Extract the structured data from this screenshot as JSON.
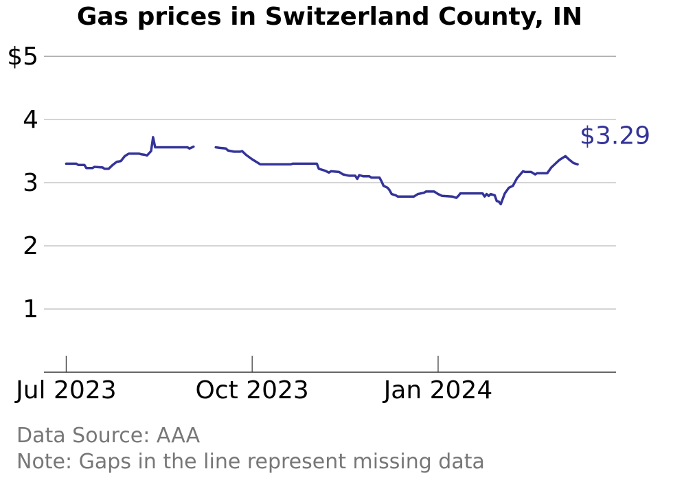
{
  "chart_data": {
    "type": "line",
    "title": "Gas prices in Switzerland County, IN",
    "xlabel": "",
    "ylabel": "",
    "ylim": [
      0,
      5
    ],
    "yticks": [
      {
        "value": 1,
        "label": "1"
      },
      {
        "value": 2,
        "label": "2"
      },
      {
        "value": 3,
        "label": "3"
      },
      {
        "value": 4,
        "label": "4"
      },
      {
        "value": 5,
        "label": "$5"
      }
    ],
    "xlim": [
      "2023-06-20",
      "2024-03-29"
    ],
    "xticks": [
      {
        "value": "2023-07-01",
        "label": "Jul 2023"
      },
      {
        "value": "2023-10-01",
        "label": "Oct 2023"
      },
      {
        "value": "2024-01-01",
        "label": "Jan 2024"
      }
    ],
    "grid": true,
    "line_color": "#333399",
    "last_value_label": "$3.29",
    "series": [
      {
        "segments": [
          [
            [
              "2023-07-01",
              3.3
            ],
            [
              "2023-07-06",
              3.3
            ],
            [
              "2023-07-07",
              3.28
            ],
            [
              "2023-07-10",
              3.28
            ],
            [
              "2023-07-11",
              3.23
            ],
            [
              "2023-07-14",
              3.23
            ],
            [
              "2023-07-15",
              3.25
            ],
            [
              "2023-07-19",
              3.24
            ],
            [
              "2023-07-20",
              3.22
            ],
            [
              "2023-07-22",
              3.22
            ],
            [
              "2023-07-24",
              3.28
            ],
            [
              "2023-07-26",
              3.33
            ],
            [
              "2023-07-28",
              3.34
            ],
            [
              "2023-07-30",
              3.42
            ],
            [
              "2023-08-01",
              3.46
            ],
            [
              "2023-08-06",
              3.46
            ],
            [
              "2023-08-07",
              3.45
            ],
            [
              "2023-08-09",
              3.44
            ],
            [
              "2023-08-10",
              3.43
            ],
            [
              "2023-08-12",
              3.5
            ],
            [
              "2023-08-13",
              3.72
            ],
            [
              "2023-08-14",
              3.56
            ],
            [
              "2023-08-30",
              3.56
            ],
            [
              "2023-08-31",
              3.54
            ],
            [
              "2023-09-02",
              3.57
            ]
          ],
          [
            [
              "2023-09-13",
              3.56
            ],
            [
              "2023-09-15",
              3.55
            ],
            [
              "2023-09-18",
              3.54
            ],
            [
              "2023-09-19",
              3.51
            ],
            [
              "2023-09-22",
              3.49
            ],
            [
              "2023-09-25",
              3.49
            ],
            [
              "2023-09-26",
              3.5
            ],
            [
              "2023-09-28",
              3.44
            ],
            [
              "2023-10-01",
              3.37
            ],
            [
              "2023-10-03",
              3.33
            ],
            [
              "2023-10-05",
              3.29
            ],
            [
              "2023-10-20",
              3.29
            ],
            [
              "2023-10-21",
              3.3
            ],
            [
              "2023-11-02",
              3.3
            ],
            [
              "2023-11-03",
              3.22
            ],
            [
              "2023-11-06",
              3.19
            ],
            [
              "2023-11-08",
              3.16
            ],
            [
              "2023-11-09",
              3.18
            ],
            [
              "2023-11-13",
              3.17
            ],
            [
              "2023-11-15",
              3.13
            ],
            [
              "2023-11-18",
              3.11
            ],
            [
              "2023-11-21",
              3.11
            ],
            [
              "2023-11-22",
              3.06
            ],
            [
              "2023-11-23",
              3.12
            ],
            [
              "2023-11-25",
              3.1
            ],
            [
              "2023-11-28",
              3.1
            ],
            [
              "2023-11-29",
              3.08
            ],
            [
              "2023-12-03",
              3.08
            ],
            [
              "2023-12-04",
              3.02
            ],
            [
              "2023-12-05",
              2.95
            ],
            [
              "2023-12-07",
              2.92
            ],
            [
              "2023-12-08",
              2.88
            ],
            [
              "2023-12-09",
              2.82
            ],
            [
              "2023-12-11",
              2.8
            ],
            [
              "2023-12-12",
              2.78
            ],
            [
              "2023-12-20",
              2.78
            ],
            [
              "2023-12-22",
              2.82
            ],
            [
              "2023-12-25",
              2.84
            ],
            [
              "2023-12-26",
              2.86
            ],
            [
              "2023-12-30",
              2.86
            ],
            [
              "2024-01-01",
              2.82
            ],
            [
              "2024-01-03",
              2.79
            ],
            [
              "2024-01-08",
              2.78
            ],
            [
              "2024-01-10",
              2.76
            ],
            [
              "2024-01-11",
              2.79
            ],
            [
              "2024-01-12",
              2.83
            ],
            [
              "2024-01-23",
              2.83
            ],
            [
              "2024-01-24",
              2.78
            ],
            [
              "2024-01-25",
              2.82
            ],
            [
              "2024-01-26",
              2.79
            ],
            [
              "2024-01-27",
              2.82
            ],
            [
              "2024-01-29",
              2.8
            ],
            [
              "2024-01-30",
              2.71
            ],
            [
              "2024-01-31",
              2.7
            ],
            [
              "2024-02-01",
              2.66
            ],
            [
              "2024-02-03",
              2.83
            ],
            [
              "2024-02-05",
              2.92
            ],
            [
              "2024-02-07",
              2.95
            ],
            [
              "2024-02-09",
              3.07
            ],
            [
              "2024-02-12",
              3.18
            ],
            [
              "2024-02-13",
              3.17
            ],
            [
              "2024-02-16",
              3.17
            ],
            [
              "2024-02-18",
              3.13
            ],
            [
              "2024-02-19",
              3.15
            ],
            [
              "2024-02-24",
              3.15
            ],
            [
              "2024-02-26",
              3.24
            ],
            [
              "2024-02-28",
              3.3
            ],
            [
              "2024-03-01",
              3.36
            ],
            [
              "2024-03-04",
              3.42
            ],
            [
              "2024-03-06",
              3.36
            ],
            [
              "2024-03-08",
              3.31
            ],
            [
              "2024-03-10",
              3.29
            ]
          ]
        ]
      }
    ]
  },
  "footer": {
    "source": "Data Source: AAA",
    "note": "Note: Gaps in the line represent missing data"
  }
}
